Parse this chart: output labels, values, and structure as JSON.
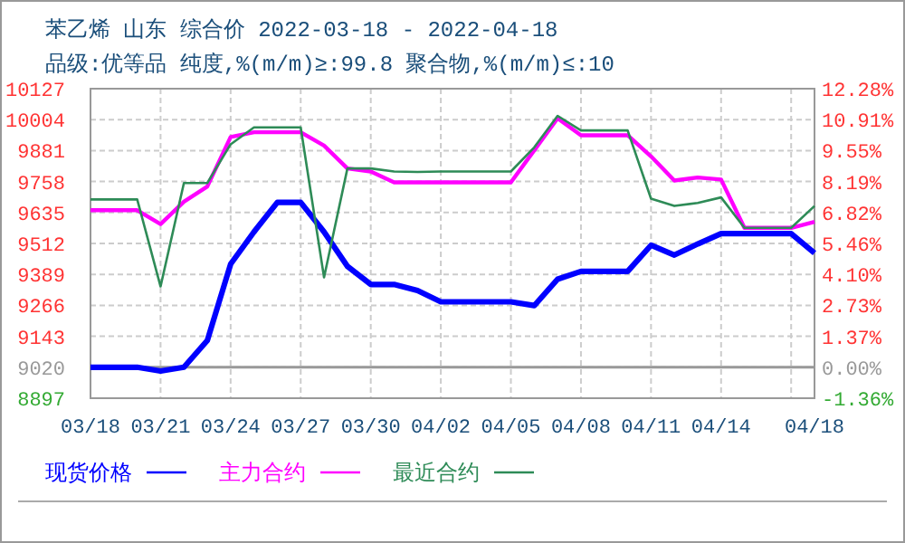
{
  "chart_data": {
    "type": "line",
    "title": "苯乙烯 山东 综合价 2022-03-18 - 2022-04-18",
    "subtitle": "品级:优等品 纯度,%(m/m)≥:99.8 聚合物,%(m/m)≤:10",
    "x": [
      "2022-03-18",
      "2022-03-19",
      "2022-03-20",
      "2022-03-21",
      "2022-03-22",
      "2022-03-23",
      "2022-03-24",
      "2022-03-25",
      "2022-03-26",
      "2022-03-27",
      "2022-03-28",
      "2022-03-29",
      "2022-03-30",
      "2022-03-31",
      "2022-04-01",
      "2022-04-02",
      "2022-04-03",
      "2022-04-04",
      "2022-04-05",
      "2022-04-06",
      "2022-04-07",
      "2022-04-08",
      "2022-04-09",
      "2022-04-10",
      "2022-04-11",
      "2022-04-12",
      "2022-04-13",
      "2022-04-14",
      "2022-04-15",
      "2022-04-16",
      "2022-04-17",
      "2022-04-18"
    ],
    "series": [
      {
        "name": "现货价格",
        "color": "#0000ff",
        "values": [
          9020,
          9020,
          9020,
          9005,
          9020,
          9126,
          9430,
          9558,
          9675,
          9675,
          9558,
          9421,
          9349,
          9349,
          9325,
          9280,
          9280,
          9280,
          9280,
          9265,
          9370,
          9401,
          9401,
          9401,
          9505,
          9466,
          9510,
          9551,
          9551,
          9551,
          9551,
          9474
        ]
      },
      {
        "name": "主力合约",
        "color": "#ff00ff",
        "values": [
          9644,
          9644,
          9644,
          9589,
          9678,
          9738,
          9935,
          9954,
          9954,
          9954,
          9901,
          9810,
          9798,
          9755,
          9755,
          9755,
          9755,
          9755,
          9755,
          9882,
          10009,
          9942,
          9942,
          9942,
          9858,
          9762,
          9774,
          9766,
          9574,
          9574,
          9574,
          9598
        ]
      },
      {
        "name": "最近合约",
        "color": "#2e8b57",
        "values": [
          9687,
          9687,
          9687,
          9341,
          9752,
          9752,
          9906,
          9973,
          9973,
          9973,
          9377,
          9810,
          9810,
          9798,
          9796,
          9798,
          9798,
          9798,
          9798,
          9894,
          10019,
          9961,
          9961,
          9961,
          9690,
          9661,
          9673,
          9695,
          9574,
          9574,
          9574,
          9661
        ]
      }
    ],
    "xlim": [
      "2022-03-18",
      "2022-04-18"
    ],
    "xticks": [
      {
        "value": "2022-03-18",
        "label": "03/18"
      },
      {
        "value": "2022-03-21",
        "label": "03/21"
      },
      {
        "value": "2022-03-24",
        "label": "03/24"
      },
      {
        "value": "2022-03-27",
        "label": "03/27"
      },
      {
        "value": "2022-03-30",
        "label": "03/30"
      },
      {
        "value": "2022-04-02",
        "label": "04/02"
      },
      {
        "value": "2022-04-05",
        "label": "04/05"
      },
      {
        "value": "2022-04-08",
        "label": "04/08"
      },
      {
        "value": "2022-04-11",
        "label": "04/11"
      },
      {
        "value": "2022-04-14",
        "label": "04/14"
      },
      {
        "value": "2022-04-17",
        "label": null
      },
      {
        "value": "2022-04-18",
        "label": "04/18"
      }
    ],
    "ylim": [
      8897,
      10127
    ],
    "yticks": [
      8897,
      9020,
      9143,
      9266,
      9389,
      9512,
      9635,
      9758,
      9881,
      10004,
      10127
    ],
    "y2lim": [
      -1.36,
      12.28
    ],
    "y2ticks": [
      {
        "value": -1.36,
        "label": "-1.36%"
      },
      {
        "value": 0,
        "label": "0.00%"
      },
      {
        "value": 1.37,
        "label": "1.37%"
      },
      {
        "value": 2.73,
        "label": "2.73%"
      },
      {
        "value": 4.1,
        "label": "4.10%"
      },
      {
        "value": 5.46,
        "label": "5.46%"
      },
      {
        "value": 6.82,
        "label": "6.82%"
      },
      {
        "value": 8.19,
        "label": "8.19%"
      },
      {
        "value": 9.55,
        "label": "9.55%"
      },
      {
        "value": 10.91,
        "label": "10.91%"
      },
      {
        "value": 12.28,
        "label": "12.28%"
      }
    ],
    "ref_lines": [
      {
        "axis": "y",
        "value": 9020,
        "color": "#999999"
      }
    ],
    "grid": true,
    "legend": "bottom",
    "line_style": "solid",
    "marker": "none"
  }
}
